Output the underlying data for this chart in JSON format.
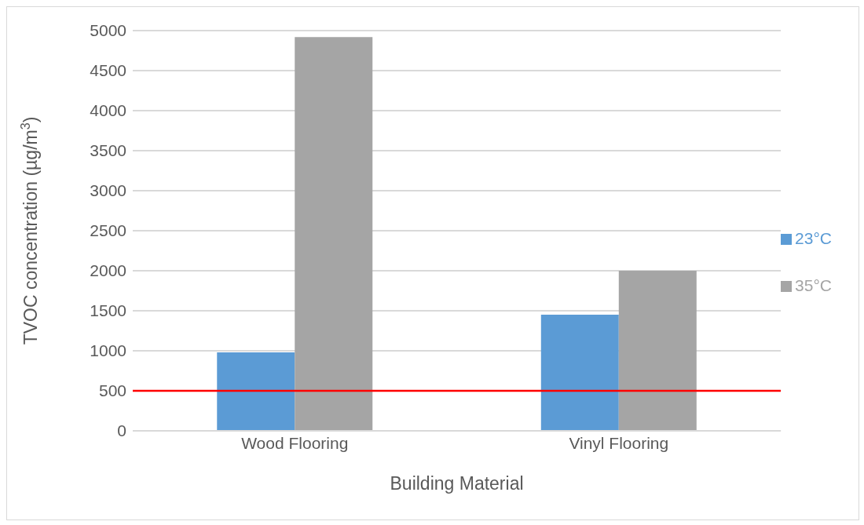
{
  "chart_data": {
    "type": "bar",
    "xlabel": "Building Material",
    "ylabel": "TVOC concentration (µg/m$^{3}$)",
    "categories": [
      "Wood Flooring",
      "Vinyl Flooring"
    ],
    "series": [
      {
        "name": "23°C",
        "color": "#5b9bd5",
        "values": [
          980,
          1450
        ]
      },
      {
        "name": "35°C",
        "color": "#a5a5a5",
        "values": [
          4920,
          2000
        ]
      }
    ],
    "ylim": [
      0,
      5000
    ],
    "yticks": [
      0,
      500,
      1000,
      1500,
      2000,
      2500,
      3000,
      3500,
      4000,
      4500,
      5000
    ],
    "grid": "y",
    "legend": "right",
    "ref_lines": [
      {
        "axis": "y",
        "value": 500,
        "color": "#ff0000"
      }
    ]
  }
}
